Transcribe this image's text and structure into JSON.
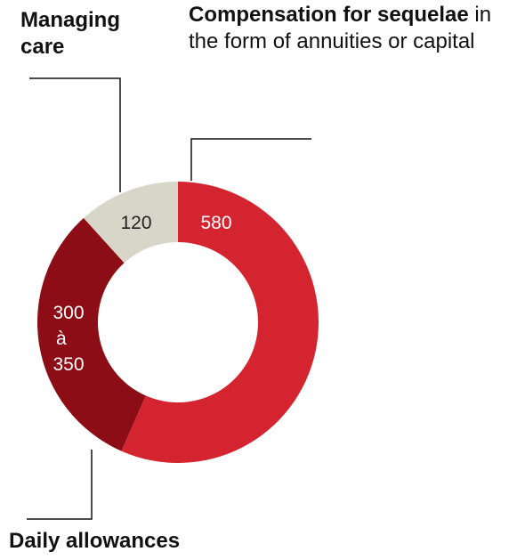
{
  "chart_data": {
    "type": "pie",
    "donut": true,
    "segments": [
      {
        "value_label": "580",
        "value": 580,
        "title": "Compensation for sequelae",
        "description": "in the form of annuities or capital",
        "color": "#d42430",
        "text_color": "#ffffff"
      },
      {
        "value_label_lines": [
          "300",
          "à",
          "350"
        ],
        "value": 325,
        "title": "Daily allowances",
        "description": "",
        "color": "#8c0d15",
        "text_color": "#ffffff"
      },
      {
        "value_label": "120",
        "value": 120,
        "title": "Managing care",
        "description": "",
        "color": "#d8d6c8",
        "text_color": "#222222"
      }
    ]
  }
}
